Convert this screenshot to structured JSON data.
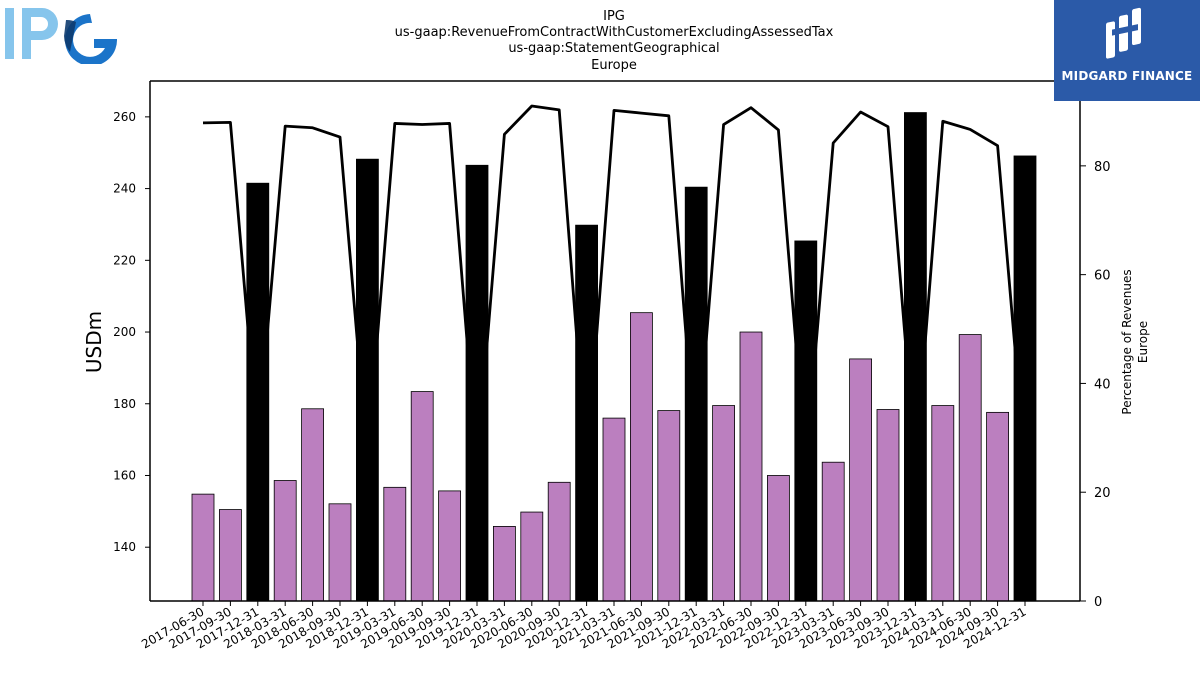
{
  "header": {
    "title_lines": [
      "IPG",
      "us-gaap:RevenueFromContractWithCustomerExcludingAssessedTax",
      "us-gaap:StatementGeographical",
      "Europe"
    ]
  },
  "logos": {
    "left": {
      "text": "IPG",
      "colors": {
        "light": "#86c5ec",
        "dark": "#1b74c9"
      }
    },
    "right": {
      "text": "MIDGARD FINANCE",
      "background": "#2b5aa8"
    }
  },
  "colors": {
    "bar_normal": "#bb7fbf",
    "bar_highlight": "#000000",
    "line": "#000000"
  },
  "chart_data": {
    "type": "bar",
    "title": "IPG us-gaap:RevenueFromContractWithCustomerExcludingAssessedTax us-gaap:StatementGeographical Europe",
    "xlabel": "",
    "ylabel": "USDm",
    "y2label_lines": [
      "Percentage of Revenues",
      "Europe"
    ],
    "ylim": [
      125,
      270
    ],
    "y2lim": [
      0,
      95.6
    ],
    "yticks": [
      140,
      160,
      180,
      200,
      220,
      240,
      260
    ],
    "y2ticks": [
      0,
      20,
      40,
      60,
      80
    ],
    "categories": [
      "2017-06-30",
      "2017-09-30",
      "2017-12-31",
      "2018-03-31",
      "2018-06-30",
      "2018-09-30",
      "2018-12-31",
      "2019-03-31",
      "2019-06-30",
      "2019-09-30",
      "2019-12-31",
      "2020-03-31",
      "2020-06-30",
      "2020-09-30",
      "2020-12-31",
      "2021-03-31",
      "2021-06-30",
      "2021-09-30",
      "2021-12-31",
      "2022-03-31",
      "2022-06-30",
      "2022-09-30",
      "2022-12-31",
      "2023-03-31",
      "2023-06-30",
      "2023-09-30",
      "2023-12-31",
      "2024-03-31",
      "2024-06-30",
      "2024-09-30",
      "2024-12-31"
    ],
    "series": [
      {
        "name": "Revenue",
        "axis": "left",
        "type": "bar",
        "values": [
          154.8,
          150.5,
          241.5,
          158.6,
          178.6,
          152.1,
          248.2,
          156.7,
          183.4,
          155.7,
          246.5,
          145.8,
          149.8,
          158.1,
          229.8,
          176.0,
          205.4,
          178.1,
          240.4,
          179.5,
          200.0,
          160.0,
          225.4,
          163.7,
          192.5,
          178.4,
          261.2,
          179.5,
          199.3,
          177.6,
          249.1
        ],
        "highlight": [
          false,
          false,
          true,
          false,
          false,
          false,
          true,
          false,
          false,
          false,
          true,
          false,
          false,
          false,
          true,
          false,
          false,
          false,
          true,
          false,
          false,
          false,
          true,
          false,
          false,
          false,
          true,
          false,
          false,
          false,
          true
        ]
      },
      {
        "name": "Percentage of Revenues",
        "axis": "right",
        "type": "line",
        "values": [
          87.9,
          88.0,
          29.0,
          87.3,
          87.0,
          85.3,
          26.0,
          87.8,
          87.6,
          87.8,
          25.0,
          85.8,
          91.0,
          90.3,
          25.0,
          90.2,
          89.7,
          89.2,
          25.0,
          87.6,
          90.7,
          86.6,
          25.0,
          84.2,
          89.9,
          87.2,
          25.0,
          88.2,
          86.7,
          83.7,
          25.0
        ]
      }
    ],
    "grid": false,
    "legend": "none"
  }
}
